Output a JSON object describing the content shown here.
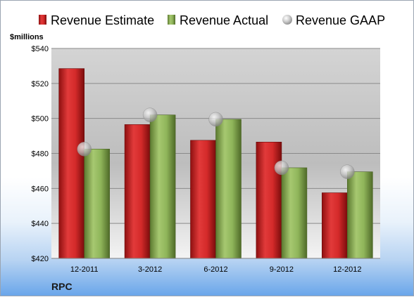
{
  "chart_data": {
    "type": "bar",
    "unit_label": "$millions",
    "company": "RPC",
    "categories": [
      "12-2011",
      "3-2012",
      "6-2012",
      "9-2012",
      "12-2012"
    ],
    "ylim": [
      420,
      540
    ],
    "yticks": [
      420,
      440,
      460,
      480,
      500,
      520,
      540
    ],
    "ytick_labels": [
      "$420",
      "$440",
      "$460",
      "$480",
      "$500",
      "$520",
      "$540"
    ],
    "grid": true,
    "legend_position": "top",
    "series": [
      {
        "name": "Revenue Estimate",
        "kind": "bar",
        "color": "#d42a2a",
        "values": [
          528.5,
          496.5,
          487.5,
          486.5,
          457.5
        ]
      },
      {
        "name": "Revenue Actual",
        "kind": "bar",
        "color": "#8fb55a",
        "values": [
          482.5,
          502.0,
          499.5,
          471.8,
          469.5
        ]
      },
      {
        "name": "Revenue GAAP",
        "kind": "marker",
        "color": "#b8b8b8",
        "values": [
          482.5,
          502.0,
          499.5,
          471.8,
          469.5
        ]
      }
    ]
  }
}
